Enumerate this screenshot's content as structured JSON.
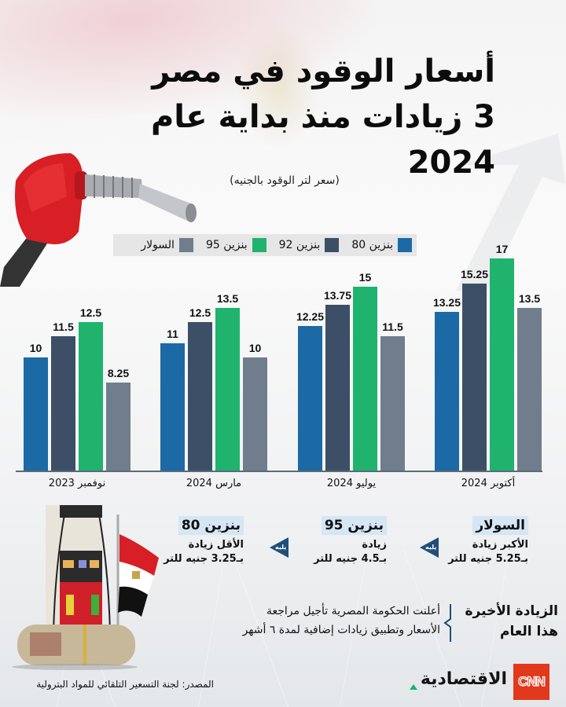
{
  "header": {
    "title_line1": "أسعار الوقود في مصر",
    "title_line2": "3 زيادات منذ بداية عام 2024",
    "subtitle": "(سعر لتر الوقود بالجنيه)"
  },
  "colors": {
    "benzine80": "#1b6aa5",
    "benzine92": "#3c4f66",
    "benzine95": "#1fb36e",
    "solar": "#707d8c",
    "highlight": "#d5e6f4",
    "marker": "#1f4e78",
    "cnn": "#e2381b",
    "brand_accent": "#19b36b"
  },
  "legend": [
    {
      "label": "بنزين 80",
      "color": "#1b6aa5"
    },
    {
      "label": "بنزين 92",
      "color": "#3c4f66"
    },
    {
      "label": "بنزين 95",
      "color": "#1fb36e"
    },
    {
      "label": "السولار",
      "color": "#707d8c"
    }
  ],
  "chart_data": {
    "type": "bar",
    "title": "أسعار الوقود في مصر - 3 زيادات منذ بداية عام 2024",
    "subtitle": "(سعر لتر الوقود بالجنيه)",
    "xlabel": "",
    "ylabel": "سعر لتر الوقود بالجنيه",
    "categories": [
      "نوفمبر 2023",
      "مارس 2024",
      "يوليو 2024",
      "أكتوبر 2024"
    ],
    "series": [
      {
        "name": "بنزين 80",
        "color": "#1b6aa5",
        "values": [
          10,
          11,
          12.25,
          13.25
        ]
      },
      {
        "name": "بنزين 92",
        "color": "#3c4f66",
        "values": [
          11.5,
          12.5,
          13.75,
          15.25
        ]
      },
      {
        "name": "بنزين 95",
        "color": "#1fb36e",
        "values": [
          12.5,
          13.5,
          15,
          17
        ]
      },
      {
        "name": "السولار",
        "color": "#707d8c",
        "values": [
          8.25,
          10,
          11.5,
          13.5
        ]
      }
    ],
    "data_labels": true,
    "grid": false,
    "legend_position": "top"
  },
  "increases": [
    {
      "heading": "السولار",
      "line1": "الأكبر زيادة",
      "line2": "بـ5.25 جنيه للتر"
    },
    {
      "heading": "بنزين 95",
      "line1": "زيادة",
      "line2": "بـ4.5 جنيه للتر"
    },
    {
      "heading": "بنزين 80",
      "line1": "الأقل زيادة",
      "line2": "بـ3.25 جنيه للتر"
    }
  ],
  "next_marker_label": "يليه",
  "latest": {
    "title_line1": "الزيادة الأخيرة",
    "title_line2": "هذا العام",
    "body_line1": "أعلنت الحكومة المصرية تأجيل مراجعة",
    "body_line2": "الأسعار وتطبيق زيادات إضافية لمدة ٦ أشهر"
  },
  "footer": {
    "source": "المصدر: لجنة التسعير التلقائي للمواد البترولية",
    "brand": "الاقتصادية",
    "cnn_logo": "CNN"
  }
}
